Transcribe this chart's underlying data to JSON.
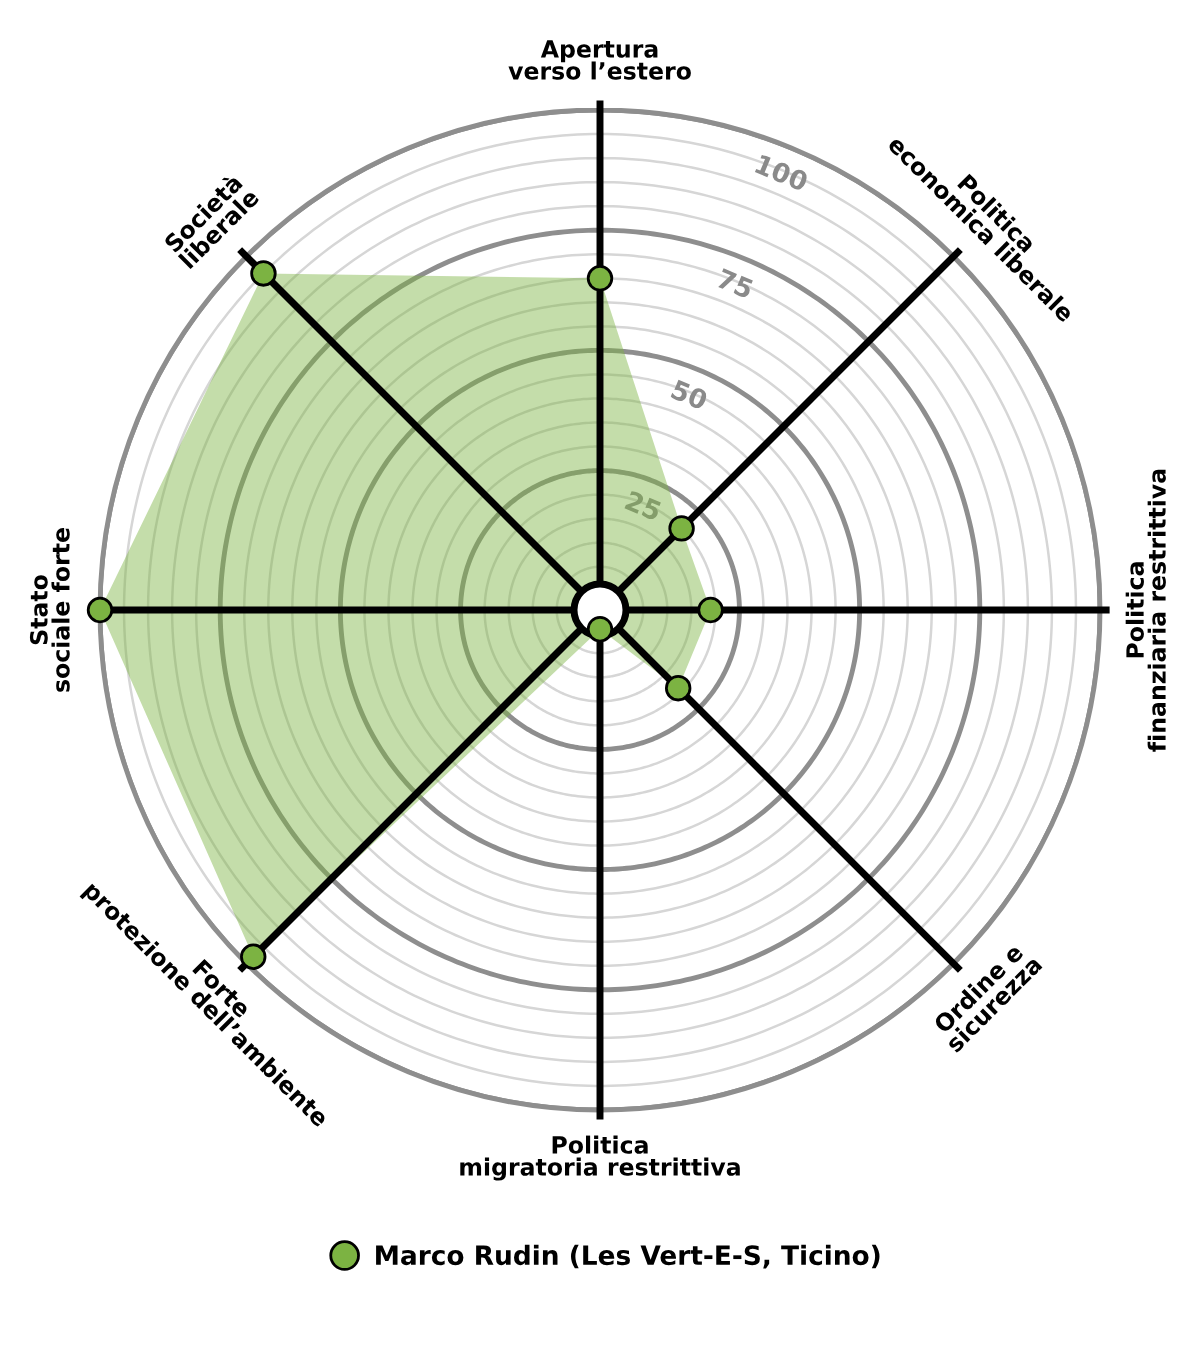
{
  "chart_data": {
    "type": "radar",
    "categories": [
      "Apertura\nverso l’estero",
      "Politica\neconomica liberale",
      "Politica\nfinanziaria restrittiva",
      "Ordine e\nsicurezza",
      "Politica\nmigratoria restrittiva",
      "Forte\nprotezione dell’ambiente",
      "Stato\nsociale forte",
      "Società\nliberale"
    ],
    "series": [
      {
        "name": "Marco Rudin (Les Vert-E-S, Ticino)",
        "color": "#7cb342",
        "values": [
          65,
          20,
          19,
          19,
          0,
          98,
          100,
          95
        ]
      }
    ],
    "ylim": [
      -4,
      100
    ],
    "yticks": [
      25,
      50,
      75,
      100
    ],
    "grid": true,
    "marker": "circle",
    "legend": "bottom"
  }
}
